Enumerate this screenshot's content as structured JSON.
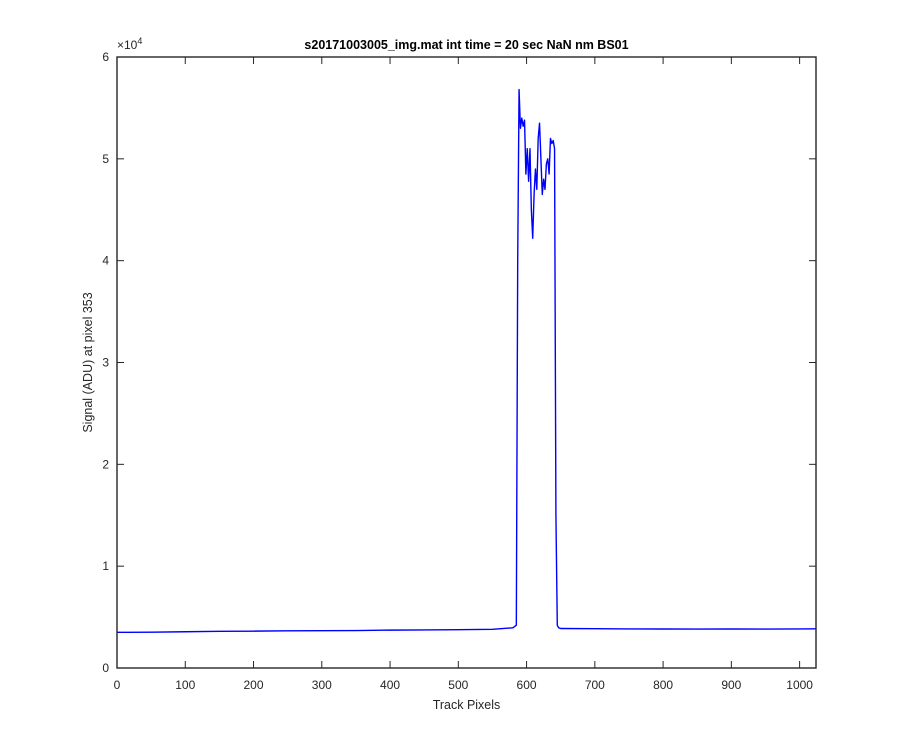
{
  "chart_data": {
    "type": "line",
    "title": "s20171003005_img.mat int time = 20 sec  NaN nm BS01",
    "xlabel": "Track Pixels",
    "ylabel": "Signal (ADU) at pixel 353",
    "xlim": [
      0,
      1024
    ],
    "ylim": [
      0,
      60000
    ],
    "y_exponent_label": "×10",
    "y_exponent_power": "4",
    "xticks": [
      0,
      100,
      200,
      300,
      400,
      500,
      600,
      700,
      800,
      900,
      1000
    ],
    "xtick_labels": [
      "0",
      "100",
      "200",
      "300",
      "400",
      "500",
      "600",
      "700",
      "800",
      "900",
      "1000"
    ],
    "yticks": [
      0,
      10000,
      20000,
      30000,
      40000,
      50000,
      60000
    ],
    "ytick_labels": [
      "0",
      "1",
      "2",
      "3",
      "4",
      "5",
      "6"
    ],
    "grid": false,
    "series": [
      {
        "color": "#0000ff",
        "x": [
          0,
          50,
          100,
          150,
          200,
          250,
          300,
          350,
          400,
          450,
          500,
          550,
          580,
          585,
          587,
          589,
          591,
          593,
          595,
          597,
          599,
          601,
          603,
          605,
          607,
          609,
          611,
          613,
          615,
          617,
          619,
          621,
          623,
          625,
          627,
          629,
          631,
          633,
          635,
          637,
          639,
          641,
          643,
          645,
          647,
          650,
          700,
          750,
          800,
          850,
          900,
          950,
          1000,
          1024
        ],
        "y": [
          3500,
          3520,
          3560,
          3600,
          3620,
          3650,
          3660,
          3680,
          3720,
          3740,
          3760,
          3800,
          3950,
          4200,
          40000,
          56800,
          53000,
          54000,
          53200,
          53800,
          48500,
          51000,
          47800,
          51000,
          45000,
          42200,
          46500,
          49000,
          47000,
          52000,
          53500,
          50000,
          46500,
          48000,
          47000,
          49500,
          50000,
          48500,
          52000,
          51500,
          51800,
          51000,
          15000,
          4200,
          3950,
          3880,
          3860,
          3840,
          3830,
          3820,
          3830,
          3820,
          3840,
          3850
        ]
      }
    ]
  }
}
